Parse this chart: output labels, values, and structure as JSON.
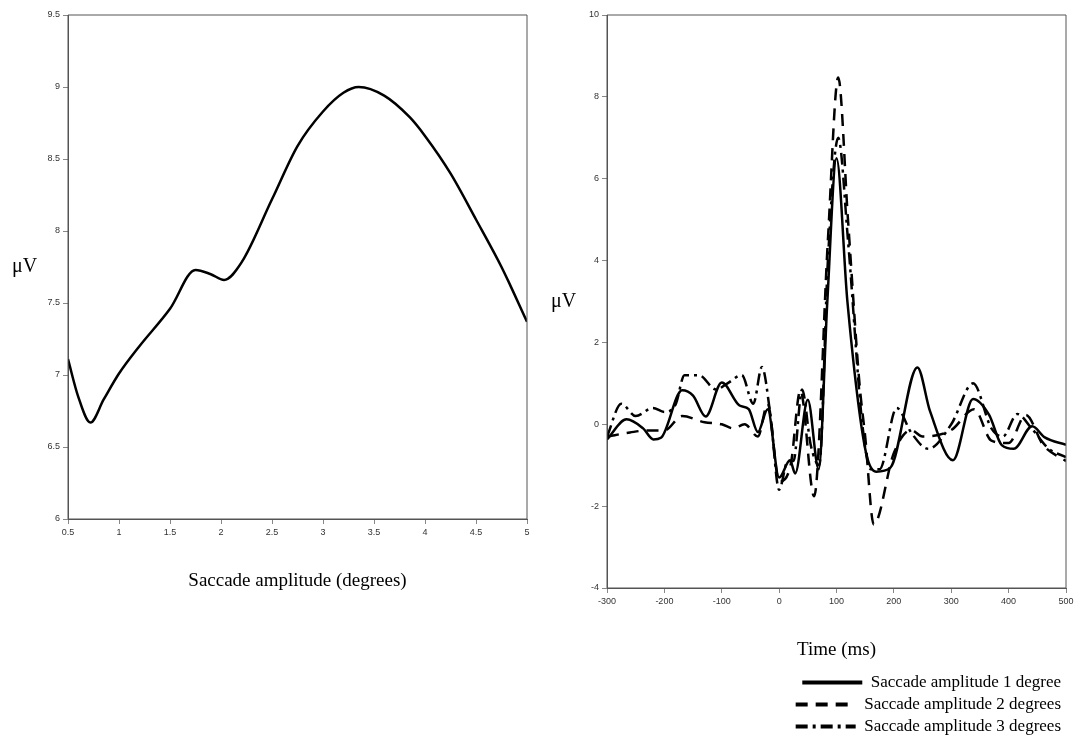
{
  "chart_data": [
    {
      "type": "line",
      "xlabel": "Saccade amplitude (degrees)",
      "ylabel": "μV",
      "xlim": [
        0.5,
        5
      ],
      "xticks": [
        0.5,
        1,
        1.5,
        2,
        2.5,
        3,
        3.5,
        4,
        4.5,
        5
      ],
      "ylim": [
        6,
        9.5
      ],
      "yticks": [
        6,
        6.5,
        7,
        7.5,
        8,
        8.5,
        9,
        9.5
      ],
      "grid": false,
      "legend": false,
      "marker": "none",
      "series": [
        {
          "color": "#000000",
          "line_style": "solid",
          "x": [
            0.5,
            0.6,
            0.72,
            0.85,
            1.0,
            1.2,
            1.5,
            1.75,
            1.9,
            2.03,
            2.2,
            2.5,
            2.75,
            3.0,
            3.2,
            3.35,
            3.6,
            3.85,
            4.0,
            4.25,
            4.5,
            4.75,
            5.0
          ],
          "values": [
            7.11,
            6.85,
            6.67,
            6.83,
            7.01,
            7.2,
            7.46,
            7.73,
            7.7,
            7.66,
            7.78,
            8.22,
            8.59,
            8.83,
            8.96,
            9.0,
            8.94,
            8.79,
            8.66,
            8.4,
            8.08,
            7.75,
            7.37
          ]
        }
      ]
    },
    {
      "type": "line",
      "xlabel": "Time (ms)",
      "ylabel": "μV",
      "xlim": [
        -300,
        500
      ],
      "xticks": [
        -300,
        -200,
        -100,
        0,
        100,
        200,
        300,
        400,
        500
      ],
      "ylim": [
        -4,
        10
      ],
      "yticks": [
        -4,
        -2,
        0,
        2,
        4,
        6,
        8,
        10
      ],
      "grid": false,
      "legend": "bottom",
      "marker": "none",
      "series": [
        {
          "name": "Saccade amplitude 1 degree",
          "color": "#000000",
          "line_style": "solid",
          "x": [
            -300,
            -266,
            -237,
            -219,
            -206,
            -169,
            -150,
            -128,
            -100,
            -69,
            -53,
            -37,
            -20,
            0,
            19,
            28,
            50,
            69,
            84,
            100,
            119,
            150,
            169,
            194,
            241,
            263,
            303,
            338,
            366,
            388,
            409,
            441,
            463,
            500
          ],
          "values": [
            -0.37,
            0.12,
            -0.1,
            -0.37,
            -0.33,
            0.83,
            0.7,
            0.19,
            1.02,
            0.46,
            0.37,
            -0.19,
            0.37,
            -1.3,
            -0.88,
            -1.2,
            0.6,
            -1.1,
            3.0,
            6.5,
            3.0,
            -0.6,
            -1.16,
            -1.06,
            1.39,
            0.32,
            -0.88,
            0.62,
            0.23,
            -0.51,
            -0.6,
            -0.05,
            -0.32,
            -0.5
          ]
        },
        {
          "name": "Saccade amplitude 2 degrees",
          "color": "#000000",
          "line_style": "dashed",
          "x": [
            -300,
            -260,
            -230,
            -200,
            -169,
            -130,
            -100,
            -80,
            -60,
            -37,
            -20,
            0,
            20,
            37,
            61,
            85,
            103,
            120,
            140,
            150,
            165,
            200,
            230,
            250,
            300,
            340,
            370,
            400,
            430,
            460,
            500
          ],
          "values": [
            -0.3,
            -0.2,
            -0.15,
            -0.15,
            0.2,
            0.05,
            0.0,
            -0.1,
            0.0,
            -0.3,
            0.5,
            -1.4,
            -1.0,
            0.83,
            -1.76,
            4.5,
            8.47,
            5.0,
            1.0,
            -0.3,
            -2.45,
            -0.7,
            -0.14,
            -0.3,
            -0.14,
            0.37,
            -0.4,
            -0.46,
            0.23,
            -0.5,
            -0.9
          ]
        },
        {
          "name": "Saccade amplitude 3 degrees",
          "color": "#000000",
          "line_style": "dashdot",
          "x": [
            -300,
            -275,
            -250,
            -220,
            -200,
            -180,
            -165,
            -140,
            -110,
            -90,
            -65,
            -45,
            -30,
            -15,
            0,
            15,
            25,
            40,
            55,
            70,
            85,
            103,
            120,
            145,
            160,
            175,
            205,
            230,
            260,
            300,
            338,
            370,
            390,
            415,
            440,
            470,
            500
          ],
          "values": [
            -0.3,
            0.5,
            0.2,
            0.4,
            0.3,
            0.5,
            1.2,
            1.2,
            0.85,
            1.0,
            1.2,
            0.5,
            1.4,
            0.2,
            -1.6,
            -0.9,
            -0.9,
            0.85,
            -0.5,
            -1.0,
            4.0,
            7.0,
            4.5,
            0.0,
            -1.1,
            -1.1,
            0.4,
            -0.2,
            -0.6,
            0.0,
            1.0,
            -0.1,
            -0.3,
            0.25,
            -0.1,
            -0.6,
            -0.8
          ]
        }
      ]
    }
  ]
}
